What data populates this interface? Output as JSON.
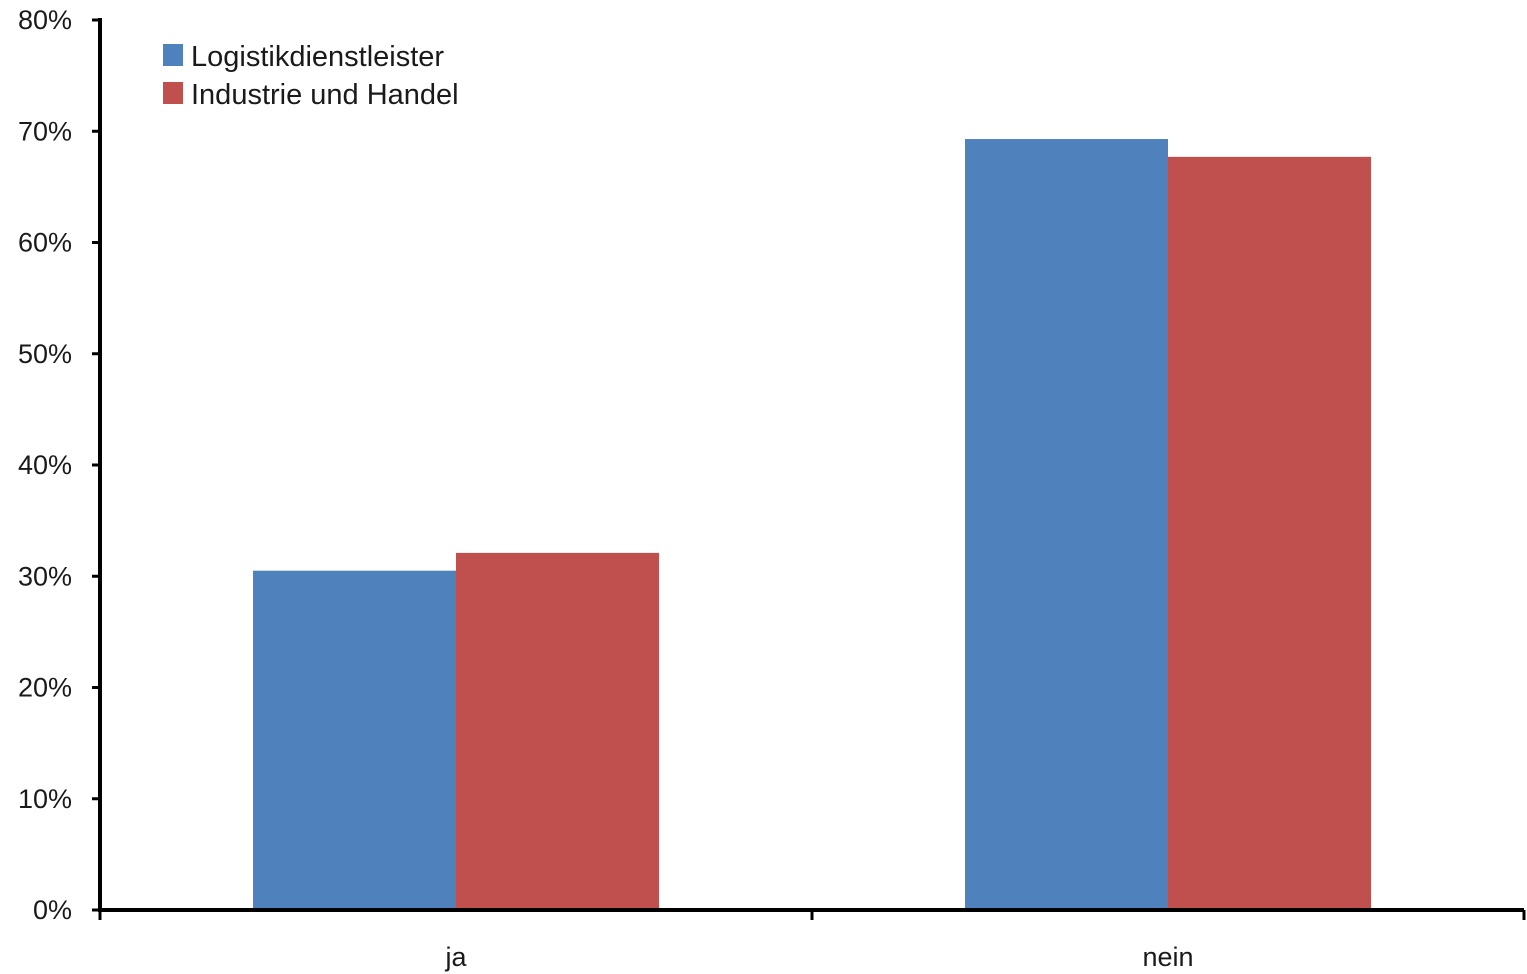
{
  "chart_data": {
    "type": "bar",
    "categories": [
      "ja",
      "nein"
    ],
    "series": [
      {
        "name": "Logistikdienstleister",
        "values": [
          30.5,
          69.3
        ],
        "color": "#4f81bd"
      },
      {
        "name": "Industrie und Handel",
        "values": [
          32.1,
          67.7
        ],
        "color": "#c0504d"
      }
    ],
    "ylim": [
      0,
      80
    ],
    "yticks": [
      0,
      10,
      20,
      30,
      40,
      50,
      60,
      70,
      80
    ],
    "ytick_labels": [
      "0%",
      "10%",
      "20%",
      "30%",
      "40%",
      "50%",
      "60%",
      "70%",
      "80%"
    ],
    "grid": false,
    "legend_position": "top-left",
    "title": "",
    "xlabel": "",
    "ylabel": ""
  }
}
